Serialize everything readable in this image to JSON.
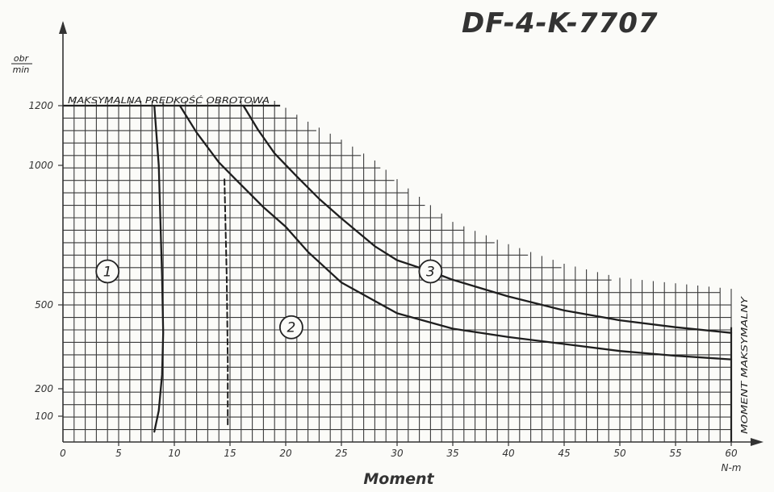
{
  "chart_data": {
    "type": "line",
    "title": "DF-4-K-7707",
    "xlabel": "Moment",
    "xunit": "N-m",
    "yunit_num": "obr",
    "yunit_den": "min",
    "xlim": [
      0,
      60
    ],
    "ylim": [
      0,
      1200
    ],
    "y_scale": "nonlinear",
    "xticks": [
      "0",
      "5",
      "10",
      "15",
      "20",
      "25",
      "30",
      "35",
      "40",
      "45",
      "50",
      "55",
      "60"
    ],
    "yticks": [
      "100",
      "200",
      "500",
      "1000",
      "1200"
    ],
    "grid": true,
    "annotations": {
      "max_speed": "MAKSYMALNA PRĘDKOŚĆ OBROTOWA",
      "max_torque": "MOMENT MAKSYMALNY"
    },
    "regions": [
      "1",
      "2",
      "3"
    ],
    "series": [
      {
        "label": "1",
        "style": "solid",
        "x": [
          8.2,
          8.6,
          8.9,
          9.0,
          8.9,
          8.6,
          8.2
        ],
        "y": [
          1200,
          1000,
          600,
          400,
          250,
          120,
          40
        ]
      },
      {
        "label": "2",
        "style": "solid",
        "x": [
          10.5,
          12,
          14,
          15.5,
          18,
          20,
          22,
          25,
          30,
          35,
          40,
          45,
          50,
          55,
          60
        ],
        "y": [
          1200,
          1110,
          1010,
          950,
          850,
          780,
          690,
          580,
          470,
          415,
          385,
          360,
          335,
          318,
          305
        ]
      },
      {
        "label": "3",
        "style": "solid",
        "x": [
          16.2,
          17.5,
          19,
          21,
          23,
          25,
          28,
          30,
          33,
          35,
          40,
          45,
          50,
          55,
          60
        ],
        "y": [
          1200,
          1120,
          1040,
          960,
          880,
          810,
          710,
          660,
          620,
          590,
          530,
          480,
          445,
          420,
          400
        ]
      },
      {
        "label": "15",
        "style": "dashed",
        "x": [
          14.5,
          14.7,
          14.8,
          14.8
        ],
        "y": [
          950,
          600,
          300,
          60
        ]
      }
    ]
  }
}
